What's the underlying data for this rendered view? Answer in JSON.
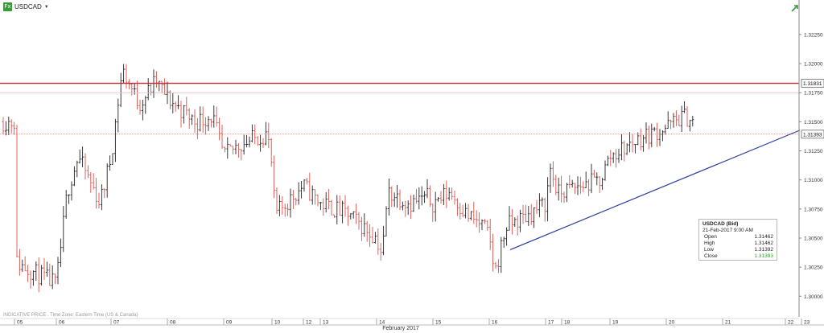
{
  "header": {
    "symbol": "USDCAD",
    "symbol_icon": "fx-icon",
    "dropdown_icon": "caret-down-icon",
    "trend_icon": "trend-arrow-icon"
  },
  "footer_note": "INDICATIVE PRICE . Time Zone: Eastern Time (US & Canada)",
  "x_axis_title": "February 2017",
  "info_box": {
    "title": "USDCAD (Bid)",
    "datetime": "21-Feb-2017 9:00 AM",
    "rows": [
      {
        "label": "Open",
        "value": "1.31462"
      },
      {
        "label": "High",
        "value": "1.31462"
      },
      {
        "label": "Low",
        "value": "1.31392"
      },
      {
        "label": "Close",
        "value": "1.31393"
      }
    ]
  },
  "colors": {
    "bull": "#222222",
    "bear": "#d9534f",
    "trendline": "#2c3f9e",
    "resistance": "#c62828",
    "price_line": "#e06666",
    "close_text": "#2f9a2f"
  },
  "chart_data": {
    "type": "ohlc",
    "ylim": [
      1.2985,
      1.3245
    ],
    "yticks": [
      "1.30000",
      "1.30250",
      "1.30500",
      "1.30750",
      "1.31000",
      "1.31250",
      "1.31500",
      "1.31750",
      "1.32000",
      "1.32250"
    ],
    "xticks": [
      "05",
      "06",
      "07",
      "08",
      "09",
      "10",
      "12",
      "13",
      "14",
      "15",
      "16",
      "17",
      "18",
      "19",
      "20",
      "21",
      "22",
      "23"
    ],
    "resistance_level": "1.31831",
    "current_price": "1.31393",
    "trendline": {
      "from": {
        "day": "16",
        "price": 1.304
      },
      "to": {
        "day": "23",
        "price": 1.3143
      }
    },
    "grid": false,
    "anchors": [
      [
        "05",
        1.303
      ],
      [
        "05.5",
        1.302
      ],
      [
        "06",
        1.301
      ],
      [
        "06.2",
        1.309
      ],
      [
        "06.4",
        1.312
      ],
      [
        "06.8",
        1.308
      ],
      [
        "07",
        1.312
      ],
      [
        "07.2",
        1.3195
      ],
      [
        "07.5",
        1.3165
      ],
      [
        "07.8",
        1.3185
      ],
      [
        "08",
        1.317
      ],
      [
        "08.5",
        1.315
      ],
      [
        "08.8",
        1.3155
      ],
      [
        "09",
        1.312
      ],
      [
        "09.3",
        1.313
      ],
      [
        "09.6",
        1.3135
      ],
      [
        "09.9",
        1.314
      ],
      [
        "10",
        1.311
      ],
      [
        "10.1",
        1.307
      ],
      [
        "12",
        1.3095
      ],
      [
        "13",
        1.308
      ],
      [
        "13.5",
        1.307
      ],
      [
        "14",
        1.305
      ],
      [
        "14.1",
        1.3035
      ],
      [
        "14.2",
        1.309
      ],
      [
        "14.6",
        1.308
      ],
      [
        "14.9",
        1.3085
      ],
      [
        "15",
        1.308
      ],
      [
        "15.3",
        1.309
      ],
      [
        "15.6",
        1.307
      ],
      [
        "15.9",
        1.306
      ],
      [
        "16",
        1.305
      ],
      [
        "16.1",
        1.302
      ],
      [
        "16.3",
        1.306
      ],
      [
        "16.7",
        1.307
      ],
      [
        "17",
        1.308
      ],
      [
        "17.3",
        1.311
      ],
      [
        "17.6",
        1.3095
      ],
      [
        "17.9",
        1.3085
      ],
      [
        "18",
        1.309
      ],
      [
        "18.4",
        1.3095
      ],
      [
        "18.8",
        1.31
      ],
      [
        "19",
        1.312
      ],
      [
        "19.5",
        1.3135
      ],
      [
        "20",
        1.3145
      ],
      [
        "20.3",
        1.3155
      ],
      [
        "20.5",
        1.315
      ]
    ]
  }
}
